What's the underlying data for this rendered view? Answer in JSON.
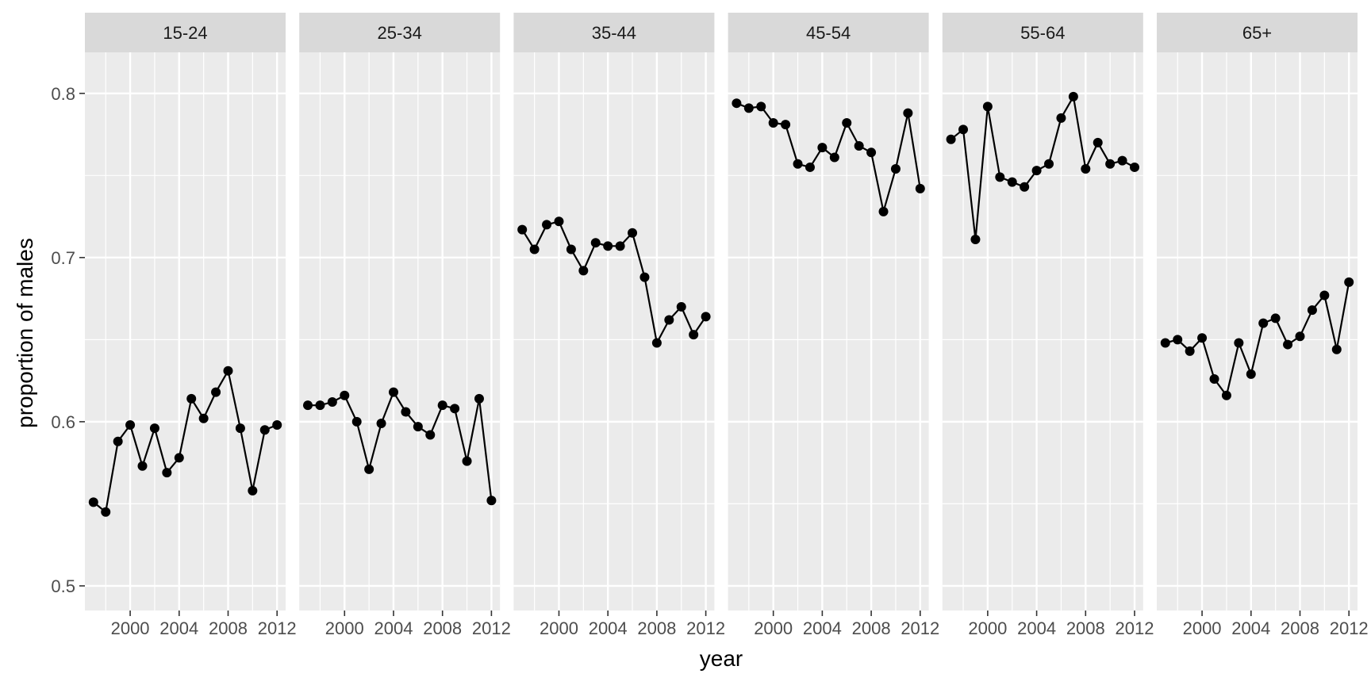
{
  "chart_data": {
    "type": "line",
    "facet_variable": "age group",
    "xlabel": "year",
    "ylabel": "proportion of males",
    "xlim": [
      1996.3,
      2012.7
    ],
    "ylim": [
      0.485,
      0.825
    ],
    "x_ticks": [
      2000,
      2004,
      2008,
      2012
    ],
    "x_tick_labels": [
      "2000",
      "2004",
      "2008",
      "2012"
    ],
    "y_ticks": [
      0.5,
      0.6,
      0.7,
      0.8
    ],
    "y_tick_labels": [
      "0.5",
      "0.6",
      "0.7",
      "0.8"
    ],
    "grid": true,
    "legend": "none",
    "years": [
      1997,
      1998,
      1999,
      2000,
      2001,
      2002,
      2003,
      2004,
      2005,
      2006,
      2007,
      2008,
      2009,
      2010,
      2011,
      2012
    ],
    "facets": [
      {
        "name": "15-24",
        "values": [
          0.551,
          0.545,
          0.588,
          0.598,
          0.573,
          0.596,
          0.569,
          0.578,
          0.614,
          0.602,
          0.618,
          0.631,
          0.596,
          0.558,
          0.595,
          0.598
        ]
      },
      {
        "name": "25-34",
        "values": [
          0.61,
          0.61,
          0.612,
          0.616,
          0.6,
          0.571,
          0.599,
          0.618,
          0.606,
          0.597,
          0.592,
          0.61,
          0.608,
          0.576,
          0.614,
          0.552
        ]
      },
      {
        "name": "35-44",
        "values": [
          0.717,
          0.705,
          0.72,
          0.722,
          0.705,
          0.692,
          0.709,
          0.707,
          0.707,
          0.715,
          0.688,
          0.648,
          0.662,
          0.67,
          0.653,
          0.664
        ]
      },
      {
        "name": "45-54",
        "values": [
          0.794,
          0.791,
          0.792,
          0.782,
          0.781,
          0.757,
          0.755,
          0.767,
          0.761,
          0.782,
          0.768,
          0.764,
          0.728,
          0.754,
          0.788,
          0.742
        ]
      },
      {
        "name": "55-64",
        "values": [
          0.772,
          0.778,
          0.711,
          0.792,
          0.749,
          0.746,
          0.743,
          0.753,
          0.757,
          0.785,
          0.798,
          0.754,
          0.77,
          0.757,
          0.759,
          0.755
        ]
      },
      {
        "name": "65+",
        "values": [
          0.648,
          0.65,
          0.643,
          0.651,
          0.626,
          0.616,
          0.648,
          0.629,
          0.66,
          0.663,
          0.647,
          0.652,
          0.668,
          0.677,
          0.644,
          0.685
        ]
      }
    ]
  }
}
